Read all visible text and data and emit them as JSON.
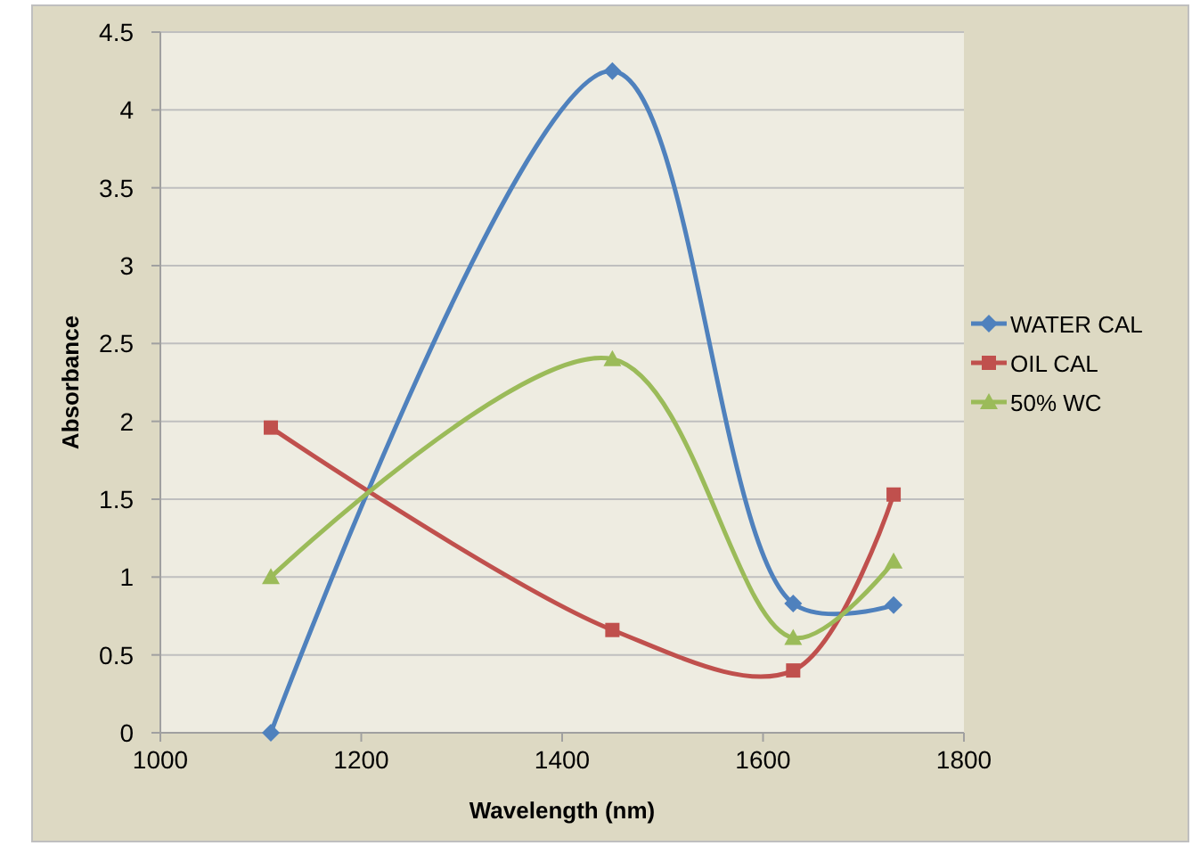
{
  "chart_data": {
    "type": "line",
    "xlabel": "Wavelength (nm)",
    "ylabel": "Absorbance",
    "x": [
      1110,
      1450,
      1630,
      1730
    ],
    "series": [
      {
        "name": "WATER CAL",
        "color": "#4f81bd",
        "values": [
          0,
          4.25,
          0.83,
          0.82
        ],
        "marker": "diamond"
      },
      {
        "name": "OIL CAL",
        "color": "#c0504d",
        "values": [
          1.96,
          0.66,
          0.4,
          1.53
        ],
        "marker": "square"
      },
      {
        "name": "50% WC",
        "color": "#9bbb59",
        "values": [
          1.0,
          2.4,
          0.61,
          1.1
        ],
        "marker": "triangle"
      }
    ],
    "xlim": [
      1000,
      1800
    ],
    "xticks": [
      1000,
      1200,
      1400,
      1600,
      1800
    ],
    "ylim": [
      0,
      4.5
    ],
    "yticks": [
      0,
      0.5,
      1,
      1.5,
      2,
      2.5,
      3,
      3.5,
      4,
      4.5
    ],
    "grid": "y",
    "legend": "right"
  }
}
